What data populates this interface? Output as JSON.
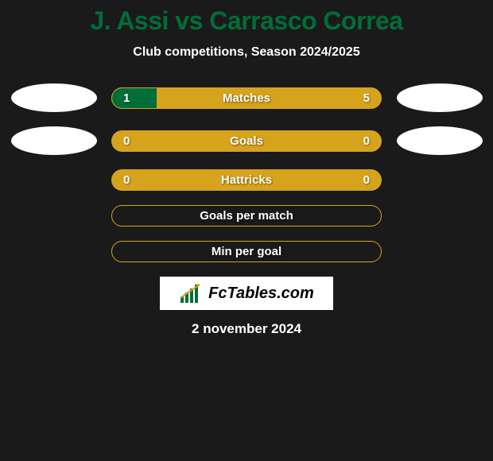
{
  "title": "J. Assi vs Carrasco Correa",
  "subtitle": "Club competitions, Season 2024/2025",
  "colors": {
    "background": "#1a1a1a",
    "title": "#016d39",
    "text": "#ffffff",
    "bar_fill": "#d6a31c",
    "bar_segment": "#016d39"
  },
  "avatars": {
    "row1_left": true,
    "row1_right": true,
    "row2_left": true,
    "row2_right": true
  },
  "stats": [
    {
      "label": "Matches",
      "left_val": "1",
      "right_val": "5",
      "left_pct": 16.67,
      "has_values": true,
      "filled": true,
      "with_avatars": true
    },
    {
      "label": "Goals",
      "left_val": "0",
      "right_val": "0",
      "left_pct": 0,
      "has_values": true,
      "filled": true,
      "with_avatars": true
    },
    {
      "label": "Hattricks",
      "left_val": "0",
      "right_val": "0",
      "left_pct": 0,
      "has_values": true,
      "filled": true,
      "with_avatars": false
    },
    {
      "label": "Goals per match",
      "left_val": "",
      "right_val": "",
      "left_pct": 0,
      "has_values": false,
      "filled": false,
      "with_avatars": false
    },
    {
      "label": "Min per goal",
      "left_val": "",
      "right_val": "",
      "left_pct": 0,
      "has_values": false,
      "filled": false,
      "with_avatars": false
    }
  ],
  "logo_text": "FcTables.com",
  "date": "2 november 2024"
}
